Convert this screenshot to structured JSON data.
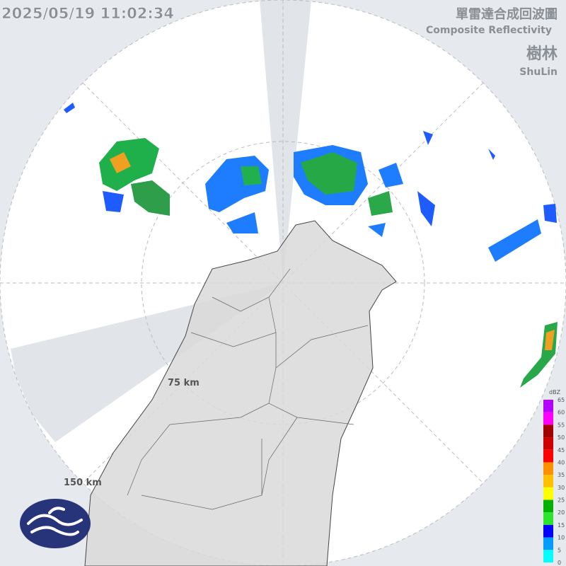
{
  "header": {
    "timestamp": "2025/05/19 11:02:34",
    "title_zh": "單雷達合成回波圖",
    "title_en": "Composite Reflectivity",
    "station_zh": "樹林",
    "station_en": "ShuLin"
  },
  "rings": [
    "75 km",
    "150 km"
  ],
  "legend": {
    "unit": "dBZ",
    "ticks": [
      "65",
      "60",
      "55",
      "50",
      "45",
      "40",
      "35",
      "30",
      "25",
      "20",
      "15",
      "10",
      "5",
      "0"
    ]
  }
}
